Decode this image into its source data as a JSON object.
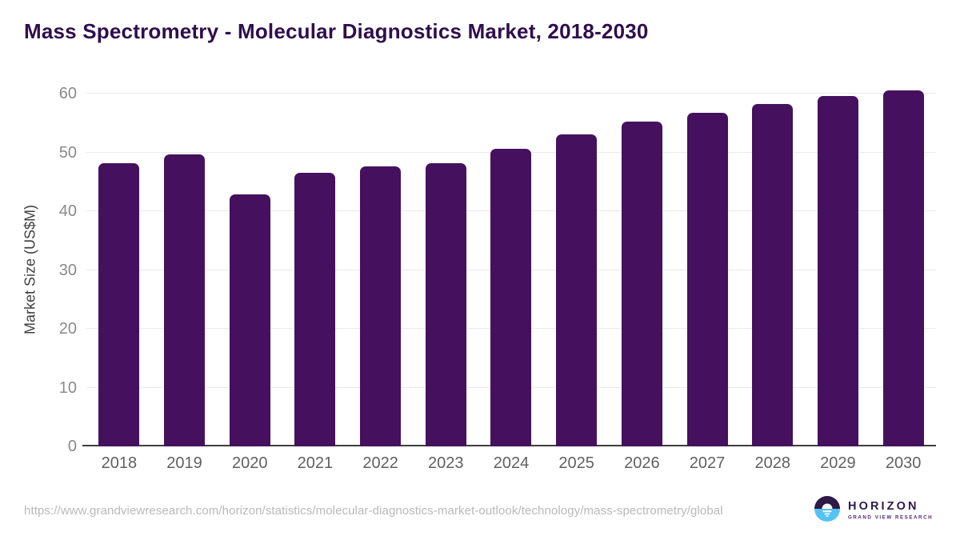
{
  "title": "Mass Spectrometry - Molecular Diagnostics Market, 2018-2030",
  "chart_data": {
    "type": "bar",
    "categories": [
      "2018",
      "2019",
      "2020",
      "2021",
      "2022",
      "2023",
      "2024",
      "2025",
      "2026",
      "2027",
      "2028",
      "2029",
      "2030"
    ],
    "values": [
      48.2,
      49.6,
      42.9,
      46.5,
      47.6,
      48.1,
      50.6,
      53.0,
      55.2,
      56.8,
      58.2,
      59.6,
      60.6
    ],
    "title": "Mass Spectrometry - Molecular Diagnostics Market, 2018-2030",
    "xlabel": "",
    "ylabel": "Market Size (US$M)",
    "ylim": [
      0,
      60
    ],
    "ytick_step": 10,
    "yticks": [
      0,
      10,
      20,
      30,
      40,
      50,
      60
    ],
    "grid": "horizontal",
    "legend": null,
    "bar_color": "#45115e"
  },
  "colors": {
    "title_text": "#2f0e4d",
    "bar": "#45115e",
    "y_tick_text": "#8a8a8a",
    "x_tick_text": "#606060",
    "y_axis_title_text": "#3f3f3f",
    "gridline": "#e9e9e9",
    "axis_line": "#3f3f3f",
    "url_text": "#b9b9b9",
    "background": "#ffffff",
    "logo_purple": "#2e1a47",
    "logo_blue": "#55c3f2"
  },
  "footer": {
    "source_url": "https://www.grandviewresearch.com/horizon/statistics/molecular-diagnostics-market-outlook/technology/mass-spectrometry/global",
    "logo": {
      "icon": "horizon-sunset-logo-icon",
      "title": "HORIZON",
      "subtitle": "GRAND VIEW RESEARCH"
    }
  }
}
